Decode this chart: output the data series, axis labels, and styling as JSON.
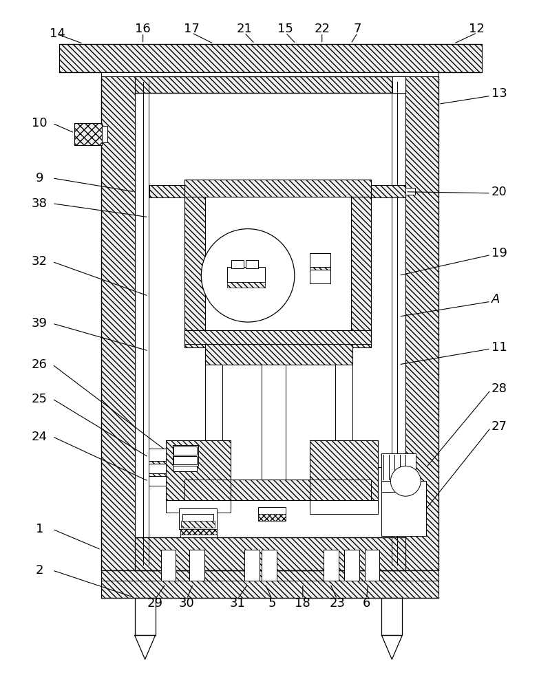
{
  "bg_color": "#ffffff",
  "line_color": "#000000",
  "fig_width": 7.83,
  "fig_height": 10.0,
  "label_fs": 13,
  "label_color": "#000000"
}
